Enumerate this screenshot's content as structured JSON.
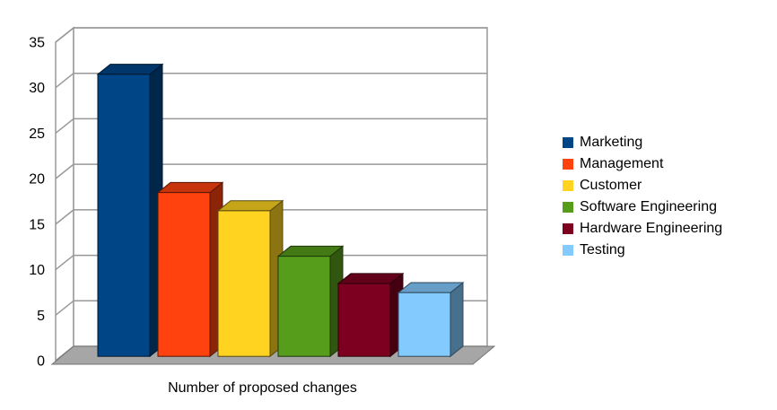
{
  "chart_data": {
    "type": "bar",
    "projection": "3d",
    "title": "",
    "xlabel": "Number of proposed changes",
    "ylabel": "",
    "ylim": [
      0,
      35
    ],
    "ytick_step": 5,
    "yticks": [
      "0",
      "5",
      "10",
      "15",
      "20",
      "25",
      "30",
      "35"
    ],
    "grid": true,
    "legend_position": "right",
    "categories": [
      "Marketing",
      "Management",
      "Customer",
      "Software Engineering",
      "Hardware Engineering",
      "Testing"
    ],
    "values": [
      31,
      18,
      16,
      11,
      8,
      7
    ],
    "series_colors": [
      "#004586",
      "#ff420e",
      "#ffd320",
      "#579d1c",
      "#7e0021",
      "#83caff"
    ],
    "colors": {
      "wall": "#ffffff",
      "floor": "#a6a6a6",
      "floor_edge": "#737373",
      "gridline": "#999999",
      "axis_text": "#000000"
    }
  }
}
